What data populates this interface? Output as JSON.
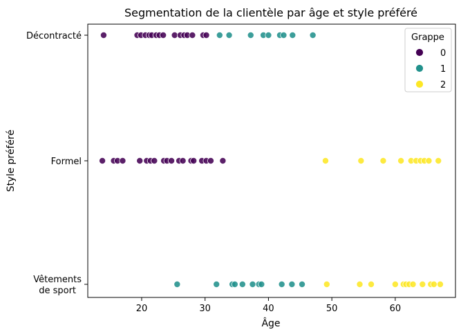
{
  "chart_data": {
    "type": "scatter",
    "title": "Segmentation de la clientèle par âge et style préféré",
    "xlabel": "Âge",
    "ylabel": "Style préféré",
    "xlim": [
      11.5,
      69.5
    ],
    "xticks": [
      20,
      30,
      40,
      50,
      60
    ],
    "categories": [
      "Décontracté",
      "Formel",
      "Vêtements de sport"
    ],
    "category_labels": [
      [
        "Décontracté"
      ],
      [
        "Formel"
      ],
      [
        "Vêtements",
        "de sport"
      ]
    ],
    "grid": false,
    "legend": {
      "title": "Grappe",
      "position": "top-right"
    },
    "series": [
      {
        "name": "0",
        "color": "#440154",
        "points": [
          {
            "x": 14.0,
            "y": "Décontracté"
          },
          {
            "x": 19.3,
            "y": "Décontracté"
          },
          {
            "x": 19.9,
            "y": "Décontracté"
          },
          {
            "x": 20.6,
            "y": "Décontracté"
          },
          {
            "x": 21.2,
            "y": "Décontracté"
          },
          {
            "x": 21.6,
            "y": "Décontracté"
          },
          {
            "x": 22.3,
            "y": "Décontracté"
          },
          {
            "x": 22.8,
            "y": "Décontracté"
          },
          {
            "x": 23.4,
            "y": "Décontracté"
          },
          {
            "x": 25.2,
            "y": "Décontracté"
          },
          {
            "x": 26.1,
            "y": "Décontracté"
          },
          {
            "x": 26.7,
            "y": "Décontracté"
          },
          {
            "x": 27.2,
            "y": "Décontracté"
          },
          {
            "x": 28.0,
            "y": "Décontracté"
          },
          {
            "x": 29.7,
            "y": "Décontracté"
          },
          {
            "x": 30.2,
            "y": "Décontracté"
          },
          {
            "x": 13.8,
            "y": "Formel"
          },
          {
            "x": 15.6,
            "y": "Formel"
          },
          {
            "x": 16.2,
            "y": "Formel"
          },
          {
            "x": 17.0,
            "y": "Formel"
          },
          {
            "x": 19.7,
            "y": "Formel"
          },
          {
            "x": 20.8,
            "y": "Formel"
          },
          {
            "x": 21.4,
            "y": "Formel"
          },
          {
            "x": 22.0,
            "y": "Formel"
          },
          {
            "x": 23.5,
            "y": "Formel"
          },
          {
            "x": 24.0,
            "y": "Formel"
          },
          {
            "x": 24.7,
            "y": "Formel"
          },
          {
            "x": 25.9,
            "y": "Formel"
          },
          {
            "x": 26.5,
            "y": "Formel"
          },
          {
            "x": 27.8,
            "y": "Formel"
          },
          {
            "x": 28.2,
            "y": "Formel"
          },
          {
            "x": 29.5,
            "y": "Formel"
          },
          {
            "x": 30.2,
            "y": "Formel"
          },
          {
            "x": 30.9,
            "y": "Formel"
          },
          {
            "x": 32.8,
            "y": "Formel"
          }
        ]
      },
      {
        "name": "1",
        "color": "#21918c",
        "points": [
          {
            "x": 32.3,
            "y": "Décontracté"
          },
          {
            "x": 33.8,
            "y": "Décontracté"
          },
          {
            "x": 37.2,
            "y": "Décontracté"
          },
          {
            "x": 39.2,
            "y": "Décontracté"
          },
          {
            "x": 40.0,
            "y": "Décontracté"
          },
          {
            "x": 41.8,
            "y": "Décontracté"
          },
          {
            "x": 42.4,
            "y": "Décontracté"
          },
          {
            "x": 43.8,
            "y": "Décontracté"
          },
          {
            "x": 47.0,
            "y": "Décontracté"
          },
          {
            "x": 25.6,
            "y": "Vêtements de sport"
          },
          {
            "x": 31.8,
            "y": "Vêtements de sport"
          },
          {
            "x": 34.3,
            "y": "Vêtements de sport"
          },
          {
            "x": 34.7,
            "y": "Vêtements de sport"
          },
          {
            "x": 35.9,
            "y": "Vêtements de sport"
          },
          {
            "x": 37.5,
            "y": "Vêtements de sport"
          },
          {
            "x": 38.5,
            "y": "Vêtements de sport"
          },
          {
            "x": 38.9,
            "y": "Vêtements de sport"
          },
          {
            "x": 42.1,
            "y": "Vêtements de sport"
          },
          {
            "x": 43.7,
            "y": "Vêtements de sport"
          },
          {
            "x": 45.3,
            "y": "Vêtements de sport"
          }
        ]
      },
      {
        "name": "2",
        "color": "#fde725",
        "points": [
          {
            "x": 49.0,
            "y": "Formel"
          },
          {
            "x": 54.6,
            "y": "Formel"
          },
          {
            "x": 58.1,
            "y": "Formel"
          },
          {
            "x": 60.9,
            "y": "Formel"
          },
          {
            "x": 62.5,
            "y": "Formel"
          },
          {
            "x": 63.3,
            "y": "Formel"
          },
          {
            "x": 64.0,
            "y": "Formel"
          },
          {
            "x": 64.6,
            "y": "Formel"
          },
          {
            "x": 65.3,
            "y": "Formel"
          },
          {
            "x": 66.8,
            "y": "Formel"
          },
          {
            "x": 49.2,
            "y": "Vêtements de sport"
          },
          {
            "x": 54.4,
            "y": "Vêtements de sport"
          },
          {
            "x": 56.2,
            "y": "Vêtements de sport"
          },
          {
            "x": 60.0,
            "y": "Vêtements de sport"
          },
          {
            "x": 61.3,
            "y": "Vêtements de sport"
          },
          {
            "x": 61.7,
            "y": "Vêtements de sport"
          },
          {
            "x": 62.2,
            "y": "Vêtements de sport"
          },
          {
            "x": 62.8,
            "y": "Vêtements de sport"
          },
          {
            "x": 64.3,
            "y": "Vêtements de sport"
          },
          {
            "x": 65.6,
            "y": "Vêtements de sport"
          },
          {
            "x": 66.1,
            "y": "Vêtements de sport"
          },
          {
            "x": 67.1,
            "y": "Vêtements de sport"
          }
        ]
      }
    ]
  }
}
